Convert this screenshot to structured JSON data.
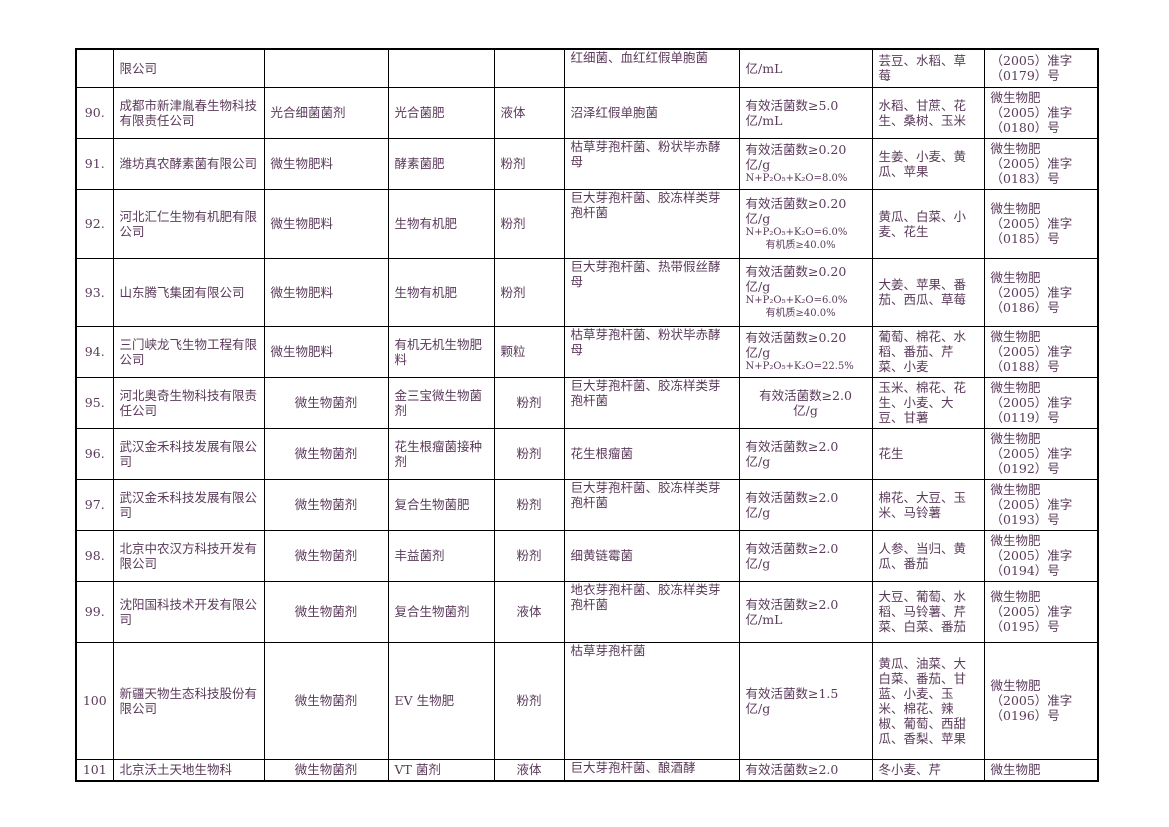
{
  "rows": [
    {
      "no": "",
      "company": "限公司",
      "type": "",
      "product": "",
      "form": "",
      "strain": "红细菌、血红红假单胞菌",
      "content": [
        "亿/mL"
      ],
      "crops": "芸豆、水稻、草莓",
      "reg": [
        "（2005）准字",
        "（0179）号"
      ]
    },
    {
      "no": "90.",
      "company": "成都市新津胤春生物科技有限责任公司",
      "type": "光合细菌菌剂",
      "product": "光合菌肥",
      "form": "液体",
      "strain": "沼泽红假单胞菌",
      "content": [
        "有效活菌数≥5.0",
        "亿/mL"
      ],
      "crops": "水稻、甘蔗、花生、桑树、玉米",
      "reg": [
        "微生物肥",
        "（2005）准字",
        "（0180）号"
      ]
    },
    {
      "no": "91.",
      "company": "潍坊真农酵素菌有限公司",
      "type": "微生物肥料",
      "product": "酵素菌肥",
      "form": "粉剂",
      "strain": "枯草芽孢杆菌、粉状毕赤酵母",
      "content": [
        "有效活菌数≥0.20",
        "亿/g"
      ],
      "content_small": [
        "N+P₂O₅+K₂O=8.0%"
      ],
      "crops": "生姜、小麦、黄瓜、苹果",
      "reg": [
        "微生物肥",
        "（2005）准字",
        "（0183）号"
      ]
    },
    {
      "no": "92.",
      "company": "河北汇仁生物有机肥有限公司",
      "type": "微生物肥料",
      "product": "生物有机肥",
      "form": "粉剂",
      "strain": "巨大芽孢杆菌、胶冻样类芽孢杆菌",
      "content": [
        "有效活菌数≥0.20",
        "亿/g"
      ],
      "content_small": [
        "N+P₂O₅+K₂O=6.0%",
        "有机质≥40.0%"
      ],
      "crops": "黄瓜、白菜、小麦、花生",
      "reg": [
        "微生物肥",
        "（2005）准字",
        "（0185）号"
      ]
    },
    {
      "no": "93.",
      "company": "山东腾飞集团有限公司",
      "type": "微生物肥料",
      "product": "生物有机肥",
      "form": "粉剂",
      "strain": "巨大芽孢杆菌、热带假丝酵母",
      "content": [
        "有效活菌数≥0.20",
        "亿/g"
      ],
      "content_small": [
        "N+P₂O₅+K₂O=6.0%",
        "有机质≥40.0%"
      ],
      "crops": "大姜、苹果、番茄、西瓜、草莓",
      "reg": [
        "微生物肥",
        "（2005）准字",
        "（0186）号"
      ]
    },
    {
      "no": "94.",
      "company": "三门峡龙飞生物工程有限公司",
      "type": "微生物肥料",
      "product": "有机无机生物肥料",
      "form": "颗粒",
      "strain": "枯草芽孢杆菌、粉状毕赤酵母",
      "content": [
        "有效活菌数≥0.20",
        "亿/g"
      ],
      "content_small": [
        "N+P₂O₅+K₂O=22.5%"
      ],
      "crops": "葡萄、棉花、水稻、番茄、芹菜、小麦",
      "reg": [
        "微生物肥",
        "（2005）准字",
        "（0188）号"
      ]
    },
    {
      "no": "95.",
      "company": "河北奥奇生物科技有限责任公司",
      "type": "微生物菌剂",
      "product": "金三宝微生物菌剂",
      "form": "粉剂",
      "strain": "巨大芽孢杆菌、胶冻样类芽孢杆菌",
      "content": [
        "有效活菌数≥2.0",
        "亿/g"
      ],
      "crops": "玉米、棉花、花生、小麦、大豆、甘薯",
      "reg": [
        "微生物肥",
        "（2005）准字",
        "（0119）号"
      ]
    },
    {
      "no": "96.",
      "company": "武汉金禾科技发展有限公司",
      "type": "微生物菌剂",
      "product": "花生根瘤菌接种剂",
      "form": "粉剂",
      "strain": "花生根瘤菌",
      "content": [
        "有效活菌数≥2.0",
        "亿/g"
      ],
      "crops": "花生",
      "reg": [
        "微生物肥",
        "（2005）准字",
        "（0192）号"
      ]
    },
    {
      "no": "97.",
      "company": "武汉金禾科技发展有限公司",
      "type": "微生物菌剂",
      "product": "复合生物菌肥",
      "form": "粉剂",
      "strain": "巨大芽孢杆菌、胶冻样类芽孢杆菌",
      "content": [
        "有效活菌数≥2.0",
        "亿/g"
      ],
      "crops": "棉花、大豆、玉米、马铃薯",
      "reg": [
        "微生物肥",
        "（2005）准字",
        "（0193）号"
      ]
    },
    {
      "no": "98.",
      "company": "北京中农汉方科技开发有限公司",
      "type": "微生物菌剂",
      "product": "丰益菌剂",
      "form": "粉剂",
      "strain": "细黄链霉菌",
      "content": [
        "有效活菌数≥2.0",
        "亿/g"
      ],
      "crops": "人参、当归、黄瓜、番茄",
      "reg": [
        "微生物肥",
        "（2005）准字",
        "（0194）号"
      ]
    },
    {
      "no": "99.",
      "company": "沈阳国科技术开发有限公司",
      "type": "微生物菌剂",
      "product": "复合生物菌剂",
      "form": "液体",
      "strain": "地衣芽孢杆菌、胶冻样类芽孢杆菌",
      "content": [
        "有效活菌数≥2.0",
        "亿/mL"
      ],
      "crops": "大豆、葡萄、水稻、马铃薯、芹菜、白菜、番茄",
      "reg": [
        "微生物肥",
        "（2005）准字",
        "（0195）号"
      ]
    },
    {
      "no": "100",
      "company": "新疆天物生态科技股份有限公司",
      "type": "微生物菌剂",
      "product": "EV 生物肥",
      "form": "粉剂",
      "strain": "枯草芽孢杆菌",
      "content": [
        "有效活菌数≥1.5",
        "亿/g"
      ],
      "crops": "黄瓜、油菜、大白菜、番茄、甘蓝、小麦、玉米、棉花、辣椒、葡萄、西甜瓜、香梨、苹果",
      "reg": [
        "微生物肥",
        "（2005）准字",
        "（0196）号"
      ]
    },
    {
      "no": "101",
      "company": "北京沃土天地生物科",
      "type": "微生物菌剂",
      "product": "VT 菌剂",
      "form": "液体",
      "strain": "巨大芽孢杆菌、酿酒酵",
      "content": [
        "有效活菌数≥2.0"
      ],
      "crops": "冬小麦、芹",
      "reg": [
        "微生物肥"
      ]
    }
  ]
}
